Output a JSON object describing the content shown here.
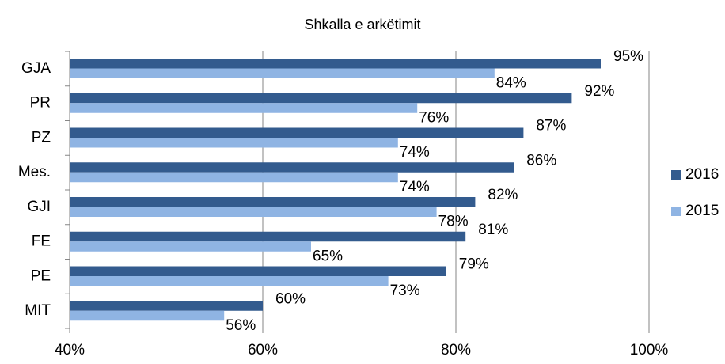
{
  "chart_data": {
    "type": "hbar",
    "title": "Shkalla e arkëtimit",
    "categories": [
      "GJA",
      "PR",
      "PZ",
      "Mes.",
      "GJI",
      "FE",
      "PE",
      "MIT"
    ],
    "series": [
      {
        "name": "2016",
        "color": "#335b8e",
        "values": [
          95,
          92,
          87,
          86,
          82,
          81,
          79,
          60
        ],
        "value_labels": [
          "95%",
          "92%",
          "87%",
          "86%",
          "82%",
          "81%",
          "79%",
          "60%"
        ]
      },
      {
        "name": "2015",
        "color": "#8fb4e3",
        "values": [
          84,
          76,
          74,
          74,
          78,
          65,
          73,
          56
        ],
        "value_labels": [
          "84%",
          "76%",
          "74%",
          "74%",
          "78%",
          "65%",
          "73%",
          "56%"
        ]
      }
    ],
    "xlim": [
      40,
      100
    ],
    "xticks": [
      {
        "value": 40,
        "label": "40%"
      },
      {
        "value": 60,
        "label": "60%"
      },
      {
        "value": 80,
        "label": "80%"
      },
      {
        "value": 100,
        "label": "100%"
      }
    ],
    "grid": true,
    "legend": "right"
  }
}
